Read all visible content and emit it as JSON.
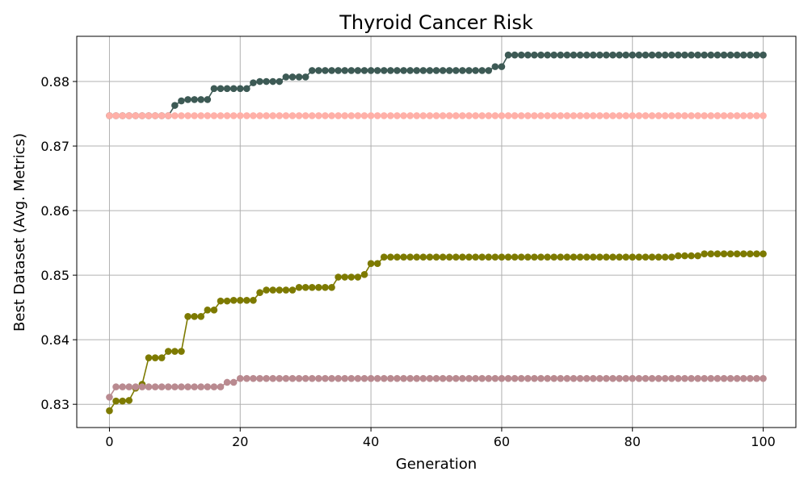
{
  "chart_data": {
    "type": "line",
    "title": "Thyroid Cancer Risk",
    "xlabel": "Generation",
    "ylabel": "Best Dataset (Avg. Metrics)",
    "xlim": [
      -5,
      105
    ],
    "ylim": [
      0.8264,
      0.887
    ],
    "xticks": [
      0,
      20,
      40,
      60,
      80,
      100
    ],
    "yticks": [
      0.83,
      0.84,
      0.85,
      0.86,
      0.87,
      0.88
    ],
    "grid": true,
    "legend": "none",
    "marker": "circle",
    "series": [
      {
        "color": "#3d5a55",
        "segments": [
          [
            0,
            0.8747
          ],
          [
            9,
            0.8747
          ],
          [
            10,
            0.8763
          ],
          [
            11,
            0.877
          ],
          [
            12,
            0.8772
          ],
          [
            15,
            0.8772
          ],
          [
            16,
            0.8789
          ],
          [
            21,
            0.8789
          ],
          [
            22,
            0.8798
          ],
          [
            23,
            0.88
          ],
          [
            26,
            0.88
          ],
          [
            27,
            0.8807
          ],
          [
            30,
            0.8807
          ],
          [
            31,
            0.8817
          ],
          [
            58,
            0.8817
          ],
          [
            59,
            0.8823
          ],
          [
            60,
            0.8823
          ],
          [
            61,
            0.8841
          ],
          [
            101,
            0.8841
          ]
        ]
      },
      {
        "color": "#ffb0a8",
        "segments": [
          [
            0,
            0.8747
          ],
          [
            101,
            0.8747
          ]
        ]
      },
      {
        "color": "#7d7a00",
        "segments": [
          [
            0,
            0.829
          ],
          [
            1,
            0.8305
          ],
          [
            3,
            0.8306
          ],
          [
            4,
            0.8325
          ],
          [
            5,
            0.8331
          ],
          [
            6,
            0.8372
          ],
          [
            8,
            0.8372
          ],
          [
            9,
            0.8382
          ],
          [
            11,
            0.8382
          ],
          [
            12,
            0.8436
          ],
          [
            14,
            0.8436
          ],
          [
            15,
            0.8446
          ],
          [
            16,
            0.8446
          ],
          [
            17,
            0.846
          ],
          [
            18,
            0.846
          ],
          [
            19,
            0.8461
          ],
          [
            22,
            0.8461
          ],
          [
            23,
            0.8473
          ],
          [
            24,
            0.8477
          ],
          [
            28,
            0.8477
          ],
          [
            29,
            0.8481
          ],
          [
            34,
            0.8481
          ],
          [
            35,
            0.8497
          ],
          [
            38,
            0.8497
          ],
          [
            39,
            0.8501
          ],
          [
            40,
            0.8518
          ],
          [
            41,
            0.8518
          ],
          [
            42,
            0.8528
          ],
          [
            86,
            0.8528
          ],
          [
            87,
            0.853
          ],
          [
            90,
            0.853
          ],
          [
            91,
            0.8533
          ],
          [
            100,
            0.8533
          ],
          [
            101,
            0.8535
          ]
        ]
      },
      {
        "color": "#b98a90",
        "segments": [
          [
            0,
            0.8311
          ],
          [
            1,
            0.8327
          ],
          [
            17,
            0.8327
          ],
          [
            18,
            0.8334
          ],
          [
            19,
            0.8334
          ],
          [
            20,
            0.834
          ],
          [
            101,
            0.834
          ]
        ]
      }
    ]
  }
}
